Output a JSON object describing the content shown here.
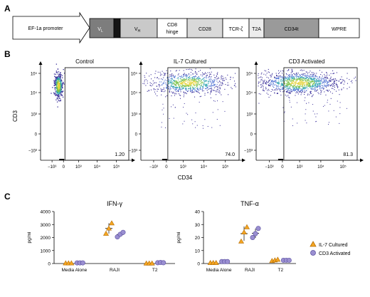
{
  "colors": {
    "vl": "#7d7d7d",
    "signal": "#151515",
    "vh": "#c9c9c9",
    "cd8": "#ffffff",
    "cd28": "#d9d9d9",
    "tcr": "#ffffff",
    "t2a": "#ededed",
    "cd34t": "#9a9a9a",
    "wpre": "#ffffff",
    "il7": "#f5a623",
    "cd3act": "#9a8fd1",
    "il7_stroke": "#b36b00",
    "cd3_stroke": "#5a4fa0"
  },
  "panel_a": {
    "label": "A",
    "promoter": "EF-1a promoter",
    "segments": [
      {
        "key": "vl",
        "label": "V",
        "sub": "L"
      },
      {
        "key": "signal",
        "label": "",
        "sub": ""
      },
      {
        "key": "vh",
        "label": "V",
        "sub": "H"
      },
      {
        "key": "cd8",
        "label": "CD8",
        "label2": "hinge"
      },
      {
        "key": "cd28",
        "label": "CD28"
      },
      {
        "key": "tcr",
        "label": "TCR-ζ"
      },
      {
        "key": "t2a",
        "label": "T2A"
      },
      {
        "key": "cd34t",
        "label": "CD34t"
      },
      {
        "key": "wpre",
        "label": "WPRE"
      }
    ]
  },
  "panel_b": {
    "label": "B",
    "ylabel": "CD3",
    "xlabel": "CD34",
    "y_ticks": [
      "10⁵",
      "10⁴",
      "10³",
      "0",
      "−10³"
    ],
    "x_ticks": [
      "−10³",
      "0",
      "10³",
      "10⁴",
      "10⁵"
    ],
    "plots": [
      {
        "title": "Control",
        "percent": "1.20"
      },
      {
        "title": "IL-7 Cultured",
        "percent": "74.0"
      },
      {
        "title": "CD3 Activated",
        "percent": "81.3"
      }
    ]
  },
  "panel_c": {
    "label": "C",
    "ylabel": "pg/ml",
    "legend": [
      "IL-7 Cultured",
      "CD3 Activated"
    ],
    "charts": [
      {
        "title": "IFN-γ",
        "y_ticks": [
          "4000",
          "3000",
          "2000",
          "1000",
          "0"
        ]
      },
      {
        "title": "TNF-α",
        "y_ticks": [
          "40",
          "30",
          "20",
          "10",
          "0"
        ]
      }
    ]
  },
  "chart_data": [
    {
      "type": "scatter",
      "title": "IFN-γ",
      "ylabel": "pg/ml",
      "ylim": [
        0,
        4000
      ],
      "categories": [
        "Media Alone",
        "RAJI",
        "T2"
      ],
      "series": [
        {
          "name": "IL-7 Cultured",
          "values": [
            [
              20,
              20,
              20
            ],
            [
              2300,
              2700,
              3100
            ],
            [
              10,
              10,
              10
            ]
          ]
        },
        {
          "name": "CD3 Activated",
          "values": [
            [
              50,
              50,
              50
            ],
            [
              2050,
              2250,
              2400
            ],
            [
              60,
              80,
              60
            ]
          ]
        }
      ]
    },
    {
      "type": "scatter",
      "title": "TNF-α",
      "ylabel": "pg/ml",
      "ylim": [
        0,
        40
      ],
      "categories": [
        "Media Alone",
        "RAJI",
        "T2"
      ],
      "series": [
        {
          "name": "IL-7 Cultured",
          "values": [
            [
              0.5,
              0.5,
              0.5
            ],
            [
              17,
              24,
              28
            ],
            [
              2,
              2.5,
              3
            ]
          ]
        },
        {
          "name": "CD3 Activated",
          "values": [
            [
              1.5,
              1.5,
              1.5
            ],
            [
              20,
              23,
              27
            ],
            [
              2.5,
              2.5,
              2.5
            ]
          ]
        }
      ]
    }
  ]
}
